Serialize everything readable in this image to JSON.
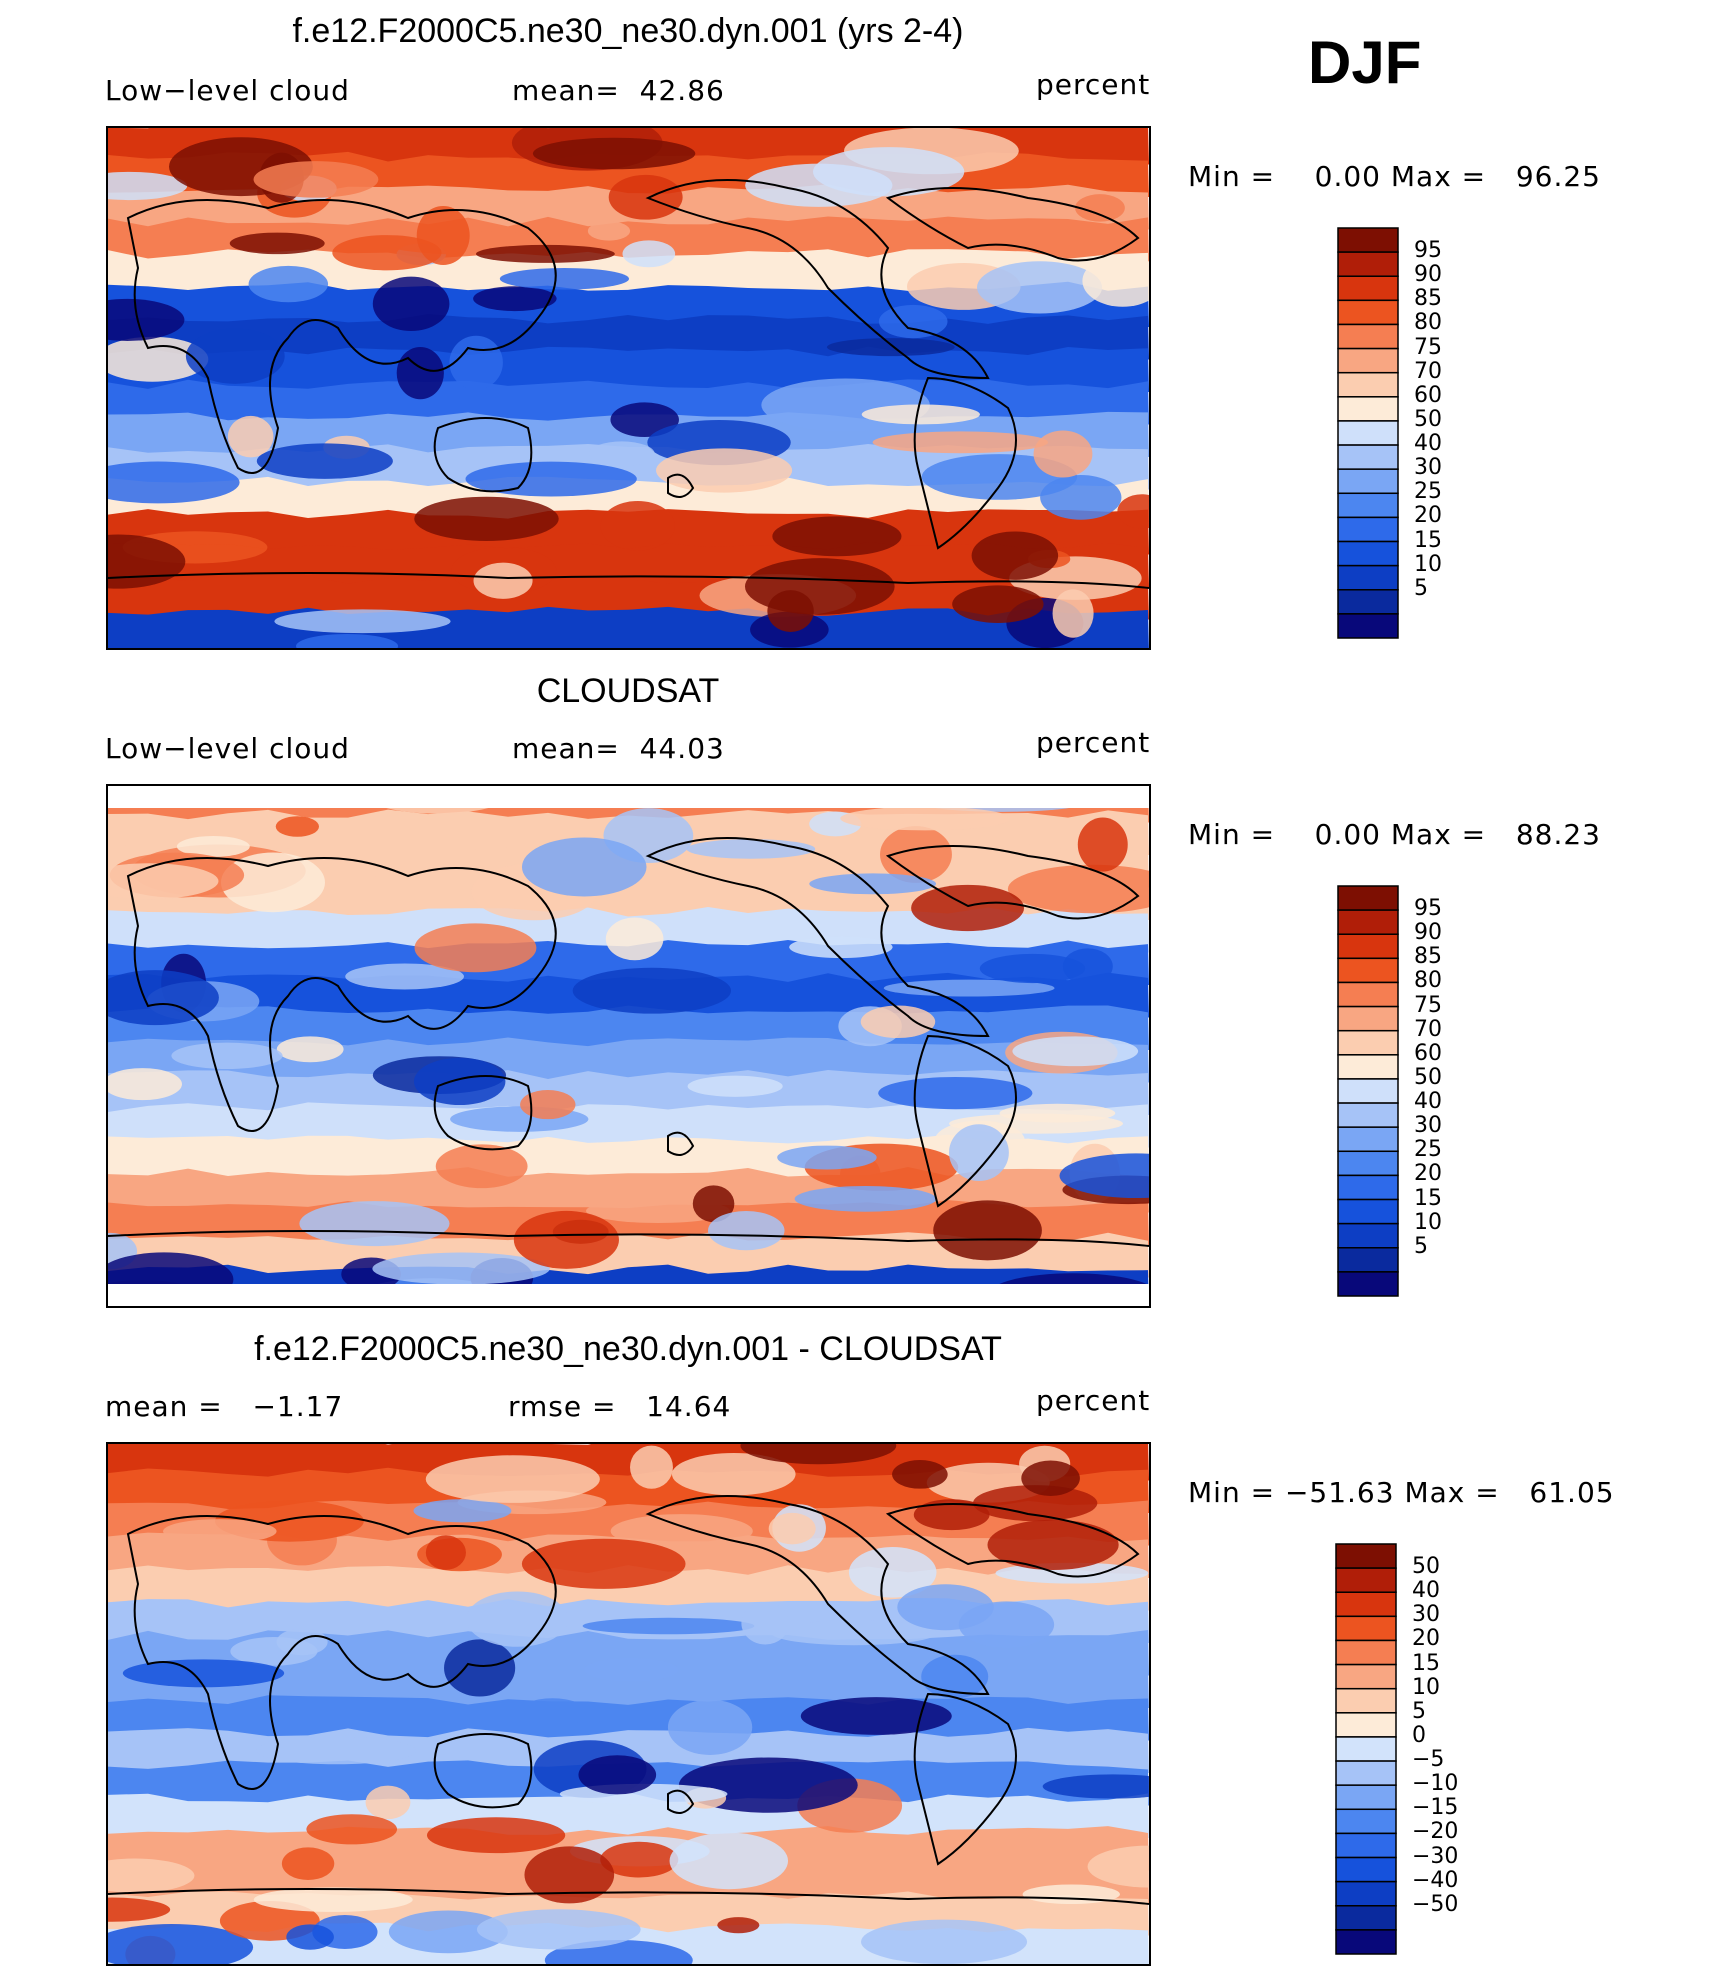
{
  "season": "DJF",
  "colors": {
    "seq": [
      "#08087a",
      "#0a2a9e",
      "#0d3ec4",
      "#1652dc",
      "#2e6aea",
      "#4c86f0",
      "#7aa6f4",
      "#a6c3f7",
      "#cfe0fa",
      "#fdebd8",
      "#fbcdb0",
      "#f8a682",
      "#f57e52",
      "#ec5420",
      "#d8350e",
      "#b01e08",
      "#7d0f02"
    ],
    "diff": [
      "#08087a",
      "#0a2a9e",
      "#0d3ec4",
      "#1652dc",
      "#2e6aea",
      "#4c86f0",
      "#7aa6f4",
      "#a6c3f7",
      "#d2e3fb",
      "#fdebd8",
      "#fbcdb0",
      "#f8a682",
      "#f57e52",
      "#ec5420",
      "#d8350e",
      "#b01e08",
      "#7d0f02"
    ]
  },
  "panels": [
    {
      "title": "f.e12.F2000C5.ne30_ne30.dyn.001 (yrs 2-4)",
      "left_label": "Low−level cloud",
      "mid_label": "mean=  42.86",
      "right_label": "percent",
      "minmax": "Min =    0.00 Max =   96.25",
      "palette": "seq",
      "colorbar_labels": [
        "95",
        "90",
        "85",
        "80",
        "75",
        "70",
        "60",
        "50",
        "40",
        "30",
        "25",
        "20",
        "15",
        "10",
        "5"
      ],
      "bands": [
        0.9,
        0.8,
        0.7,
        0.75,
        0.55,
        0.2,
        0.1,
        0.2,
        0.25,
        0.35,
        0.45,
        0.55,
        0.85,
        0.9,
        0.85,
        0.1
      ]
    },
    {
      "title": "CLOUDSAT",
      "left_label": "Low−level cloud",
      "mid_label": "mean=  44.03",
      "right_label": "percent",
      "minmax": "Min =    0.00 Max =   88.23",
      "palette": "seq",
      "colorbar_labels": [
        "95",
        "90",
        "85",
        "80",
        "75",
        "70",
        "60",
        "50",
        "40",
        "30",
        "25",
        "20",
        "15",
        "10",
        "5"
      ],
      "bands": [
        0.75,
        0.65,
        0.6,
        0.62,
        0.5,
        0.25,
        0.2,
        0.3,
        0.38,
        0.42,
        0.48,
        0.55,
        0.7,
        0.75,
        0.65,
        0.1
      ]
    },
    {
      "title": "f.e12.F2000C5.ne30_ne30.dyn.001 - CLOUDSAT",
      "left_label": "mean =   −1.17",
      "mid_label": "rmse =   14.64",
      "right_label": "percent",
      "minmax": "Min = −51.63 Max =   61.05",
      "palette": "diff",
      "colorbar_labels": [
        "50",
        "40",
        "30",
        "20",
        "15",
        "10",
        "5",
        "0",
        "−5",
        "−10",
        "−15",
        "−20",
        "−30",
        "−40",
        "−50"
      ],
      "bands": [
        0.85,
        0.8,
        0.72,
        0.7,
        0.6,
        0.42,
        0.35,
        0.4,
        0.3,
        0.45,
        0.32,
        0.5,
        0.68,
        0.7,
        0.6,
        0.5
      ]
    }
  ]
}
